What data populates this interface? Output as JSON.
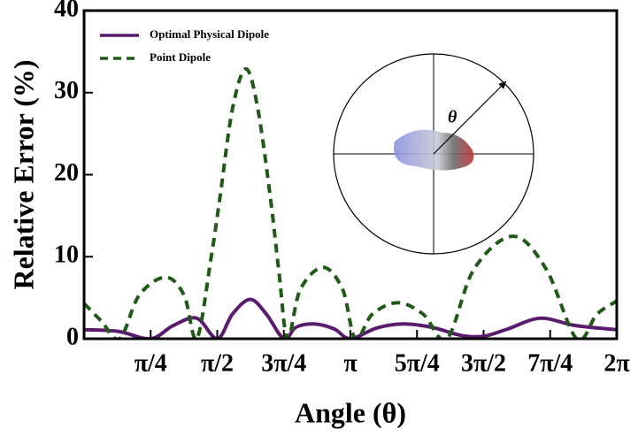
{
  "chart_data": {
    "type": "line",
    "xlabel": "Angle (θ)",
    "ylabel": "Relative Error (%)",
    "xlim": [
      0,
      6.2832
    ],
    "ylim": [
      0,
      40
    ],
    "xticks": [
      {
        "value": 0.7854,
        "label": "π/4"
      },
      {
        "value": 1.5708,
        "label": "π/2"
      },
      {
        "value": 2.3562,
        "label": "3π/4"
      },
      {
        "value": 3.1416,
        "label": "π"
      },
      {
        "value": 3.927,
        "label": "5π/4"
      },
      {
        "value": 4.7124,
        "label": "3π/2"
      },
      {
        "value": 5.4978,
        "label": "7π/4"
      },
      {
        "value": 6.2832,
        "label": "2π"
      }
    ],
    "yticks": [
      0,
      10,
      20,
      30,
      40
    ],
    "legend": "upper left",
    "inset_label": "θ",
    "series": [
      {
        "name": "Optimal Physical Dipole",
        "color": "#5a1a6e",
        "dash": false,
        "x": [
          0,
          0.4,
          0.7854,
          1.05,
          1.33,
          1.5708,
          1.75,
          1.96,
          2.15,
          2.3562,
          2.5,
          2.71,
          2.95,
          3.1416,
          3.45,
          3.76,
          4.1,
          4.45,
          4.7124,
          5.0,
          5.38,
          5.8,
          6.2832
        ],
        "values": [
          1.1,
          0.9,
          0,
          1.6,
          2.5,
          0,
          3.0,
          4.8,
          3.0,
          0,
          1.4,
          1.8,
          1.2,
          0,
          1.3,
          1.8,
          1.4,
          0.4,
          0.3,
          1.2,
          2.5,
          1.6,
          1.1
        ]
      },
      {
        "name": "Point Dipole",
        "color": "#1f5a16",
        "dash": true,
        "x": [
          0,
          0.2,
          0.42,
          0.65,
          0.96,
          1.18,
          1.33,
          1.5,
          1.6,
          1.75,
          1.91,
          2.05,
          2.2,
          2.3,
          2.4,
          2.55,
          2.82,
          3.05,
          3.2,
          3.4,
          3.7,
          4.0,
          4.28,
          4.6,
          5.06,
          5.45,
          5.81,
          6.05,
          6.2832
        ],
        "values": [
          4.3,
          2.2,
          0,
          5.3,
          7.5,
          5.3,
          0,
          10,
          17,
          28,
          32.9,
          28,
          17,
          8,
          0,
          6,
          8.7,
          6,
          0,
          3,
          4.4,
          3,
          0,
          8.5,
          12.5,
          8.5,
          0,
          3,
          4.6
        ]
      }
    ]
  }
}
